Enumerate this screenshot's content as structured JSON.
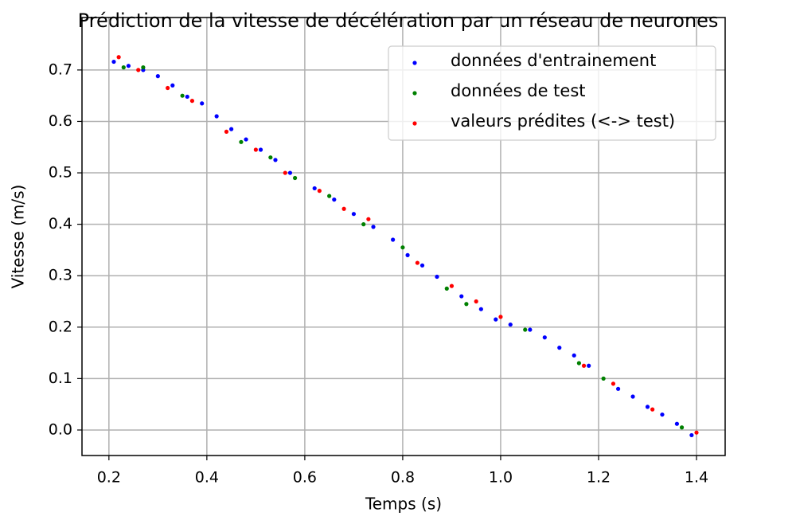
{
  "chart_data": {
    "type": "scatter",
    "title": "Prédiction de la vitesse de décélération par un réseau de neurones",
    "x_label": "Temps (s)",
    "y_label": "Vitesse (m/s)",
    "xlim": [
      0.145,
      1.4585
    ],
    "ylim": [
      -0.0496,
      0.802
    ],
    "xticks": [
      0.2,
      0.4,
      0.6,
      0.8,
      {
        "value": 1,
        "label": "1.0"
      },
      1.2,
      1.4
    ],
    "yticks": [
      {
        "value": 0,
        "label": "0.0"
      },
      0.1,
      0.2,
      0.3,
      0.4,
      0.5,
      0.6,
      0.7
    ],
    "grid": true,
    "legend": "upper right",
    "series": [
      {
        "name": "données d'entrainement",
        "color": "#0000ff",
        "x": [
          0.21,
          0.24,
          0.27,
          0.3,
          0.33,
          0.36,
          0.39,
          0.42,
          0.45,
          0.48,
          0.51,
          0.54,
          0.57,
          0.62,
          0.66,
          0.7,
          0.74,
          0.78,
          0.81,
          0.84,
          0.87,
          0.92,
          0.96,
          0.99,
          1.02,
          1.06,
          1.09,
          1.12,
          1.15,
          1.18,
          1.24,
          1.27,
          1.3,
          1.33,
          1.36,
          1.39
        ],
        "values": [
          0.716,
          0.708,
          0.7,
          0.688,
          0.67,
          0.648,
          0.635,
          0.61,
          0.585,
          0.565,
          0.545,
          0.525,
          0.5,
          0.47,
          0.448,
          0.42,
          0.395,
          0.37,
          0.34,
          0.32,
          0.298,
          0.26,
          0.235,
          0.215,
          0.205,
          0.195,
          0.18,
          0.16,
          0.145,
          0.125,
          0.08,
          0.065,
          0.045,
          0.03,
          0.012,
          -0.01
        ]
      },
      {
        "name": "données de test",
        "color": "#008000",
        "x": [
          0.23,
          0.27,
          0.35,
          0.47,
          0.53,
          0.58,
          0.65,
          0.72,
          0.8,
          0.89,
          0.93,
          1.05,
          1.16,
          1.21,
          1.37
        ],
        "values": [
          0.705,
          0.705,
          0.65,
          0.56,
          0.53,
          0.49,
          0.455,
          0.4,
          0.355,
          0.275,
          0.245,
          0.195,
          0.13,
          0.1,
          0.005
        ]
      },
      {
        "name": "valeurs prédites (<-> test)",
        "color": "#ff0000",
        "x": [
          0.22,
          0.26,
          0.32,
          0.37,
          0.44,
          0.5,
          0.56,
          0.63,
          0.68,
          0.73,
          0.83,
          0.9,
          0.95,
          1.0,
          1.17,
          1.23,
          1.31,
          1.4
        ],
        "values": [
          0.725,
          0.7,
          0.665,
          0.64,
          0.58,
          0.545,
          0.5,
          0.465,
          0.43,
          0.41,
          0.325,
          0.28,
          0.25,
          0.22,
          0.125,
          0.09,
          0.04,
          -0.005
        ]
      }
    ]
  }
}
